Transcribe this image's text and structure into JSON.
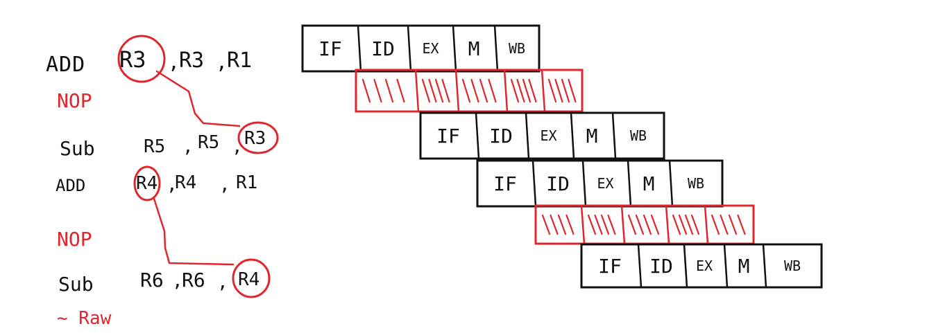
{
  "instructions": [
    {
      "op": "ADD",
      "args": [
        "R3",
        "R3",
        "R1"
      ],
      "highlight": "R3"
    },
    {
      "op": "NOP"
    },
    {
      "op": "Sub",
      "args": [
        "R5",
        "R5",
        "R3"
      ],
      "highlight": "R3"
    },
    {
      "op": "ADD",
      "args": [
        "R4",
        "R4",
        "R1"
      ],
      "highlight": "R4"
    },
    {
      "op": "NOP"
    },
    {
      "op": "Sub",
      "args": [
        "R6",
        "R6",
        "R4"
      ],
      "highlight": "R4"
    }
  ],
  "hazard_note": "~ Raw",
  "pipeline": {
    "stages": [
      "IF",
      "ID",
      "EX",
      "M",
      "WB"
    ],
    "rows": [
      {
        "kind": "instr"
      },
      {
        "kind": "stall"
      },
      {
        "kind": "instr"
      },
      {
        "kind": "instr"
      },
      {
        "kind": "stall"
      },
      {
        "kind": "instr"
      }
    ]
  },
  "colors": {
    "ink": "#111111",
    "hazard": "#e0262d",
    "background": "#ffffff"
  }
}
